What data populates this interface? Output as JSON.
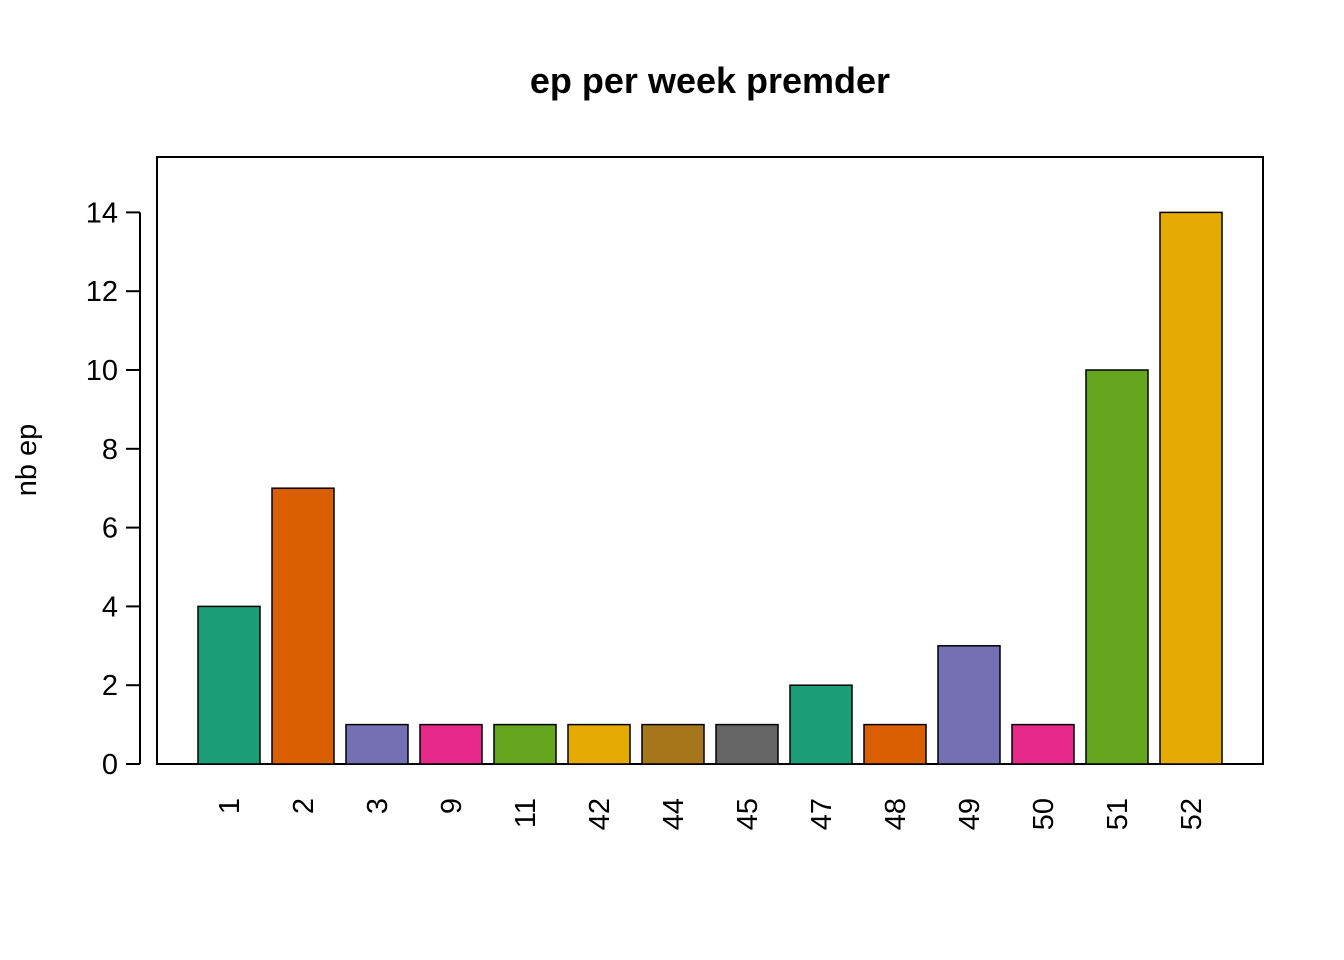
{
  "chart_data": {
    "type": "bar",
    "title": "ep per week premder",
    "xlabel": "",
    "ylabel": "nb ep",
    "categories": [
      "1",
      "2",
      "3",
      "9",
      "11",
      "42",
      "44",
      "45",
      "47",
      "48",
      "49",
      "50",
      "51",
      "52"
    ],
    "values": [
      4,
      7,
      1,
      1,
      1,
      1,
      1,
      1,
      2,
      1,
      3,
      1,
      10,
      14
    ],
    "colors": [
      "#1B9E77",
      "#D95F02",
      "#7570B3",
      "#E7298A",
      "#66A61E",
      "#E6AB02",
      "#A6761D",
      "#666666",
      "#1B9E77",
      "#D95F02",
      "#7570B3",
      "#E7298A",
      "#66A61E",
      "#E6AB02"
    ],
    "ylim": [
      0,
      15.4
    ],
    "yticks": [
      0,
      2,
      4,
      6,
      8,
      10,
      12,
      14
    ],
    "x_tick_orientation": "vertical",
    "grid": false,
    "legend": "none"
  }
}
